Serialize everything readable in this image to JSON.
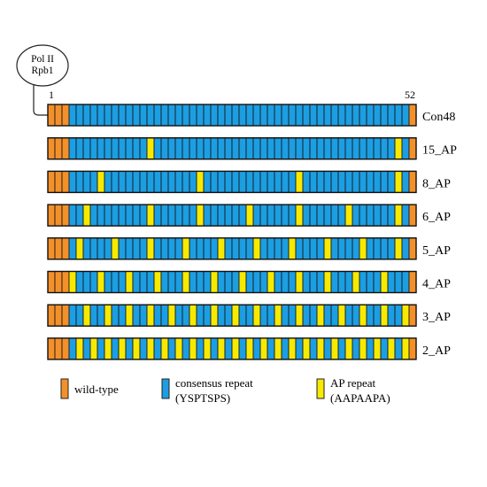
{
  "protein_label": {
    "line1": "Pol II",
    "line2": "Rpb1"
  },
  "position_start": "1",
  "position_end": "52",
  "constructs": [
    {
      "name": "Con48",
      "ap_repeats": []
    },
    {
      "name": "15_AP",
      "ap_repeats": [
        15,
        50
      ]
    },
    {
      "name": "8_AP",
      "ap_repeats": [
        8,
        22,
        36,
        50
      ]
    },
    {
      "name": "6_AP",
      "ap_repeats": [
        6,
        15,
        22,
        29,
        36,
        43,
        50
      ]
    },
    {
      "name": "5_AP",
      "ap_repeats": [
        5,
        10,
        15,
        20,
        25,
        30,
        35,
        40,
        45,
        50
      ]
    },
    {
      "name": "4_AP",
      "ap_repeats": [
        4,
        8,
        12,
        16,
        20,
        24,
        28,
        32,
        36,
        40,
        44,
        48
      ]
    },
    {
      "name": "3_AP",
      "ap_repeats": [
        3,
        6,
        9,
        12,
        15,
        18,
        21,
        24,
        27,
        30,
        33,
        36,
        39,
        42,
        45,
        48,
        51
      ]
    },
    {
      "name": "2_AP",
      "ap_repeats": [
        5,
        7,
        9,
        11,
        13,
        15,
        17,
        19,
        21,
        23,
        25,
        27,
        29,
        31,
        33,
        35,
        37,
        39,
        41,
        43,
        45,
        47,
        49,
        51
      ]
    }
  ],
  "wildtype_repeats": [
    1,
    2,
    3,
    52
  ],
  "total_repeats": 52,
  "legend": [
    {
      "key": "wildtype",
      "color": "#f4902a",
      "line1": "wild-type",
      "line2": ""
    },
    {
      "key": "consensus",
      "color": "#1c9ee3",
      "line1": "consensus repeat",
      "line2": "(YSPTSPS)"
    },
    {
      "key": "ap",
      "color": "#f7ea00",
      "line1": "AP repeat",
      "line2": "(AAPAAPA)"
    }
  ]
}
